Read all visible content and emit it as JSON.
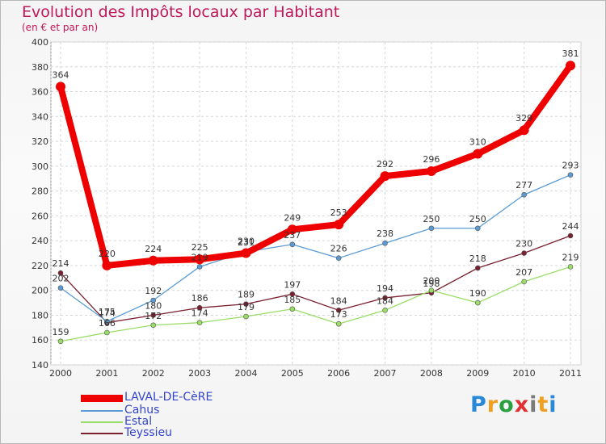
{
  "colors": {
    "title": "#c0185a",
    "axis_text": "#333333",
    "legend_text": "#3344cc"
  },
  "chart_data": {
    "type": "line",
    "title": "Evolution des Impôts locaux par Habitant",
    "subtitle": "(en € et par an)",
    "xlabel": "",
    "ylabel": "",
    "ylim": [
      140,
      400
    ],
    "ytick_step": 20,
    "grid": true,
    "legend_position": "bottom-left",
    "x": [
      "2000",
      "2001",
      "2002",
      "2003",
      "2004",
      "2005",
      "2006",
      "2007",
      "2008",
      "2009",
      "2010",
      "2011"
    ],
    "series": [
      {
        "name": "LAVAL-DE-CèRE",
        "color": "#ee0000",
        "values": [
          364,
          220,
          224,
          225,
          230,
          249,
          253,
          292,
          296,
          310,
          329,
          381
        ],
        "labels": [
          "364",
          "220",
          "224",
          "225",
          "230",
          "249",
          "253",
          "292",
          "296",
          "310",
          "329",
          "381"
        ]
      },
      {
        "name": "Cahus",
        "color": "#5b9bd5",
        "values": [
          202,
          175,
          192,
          219,
          231,
          237,
          226,
          238,
          250,
          250,
          277,
          293
        ],
        "labels": [
          "202",
          "175",
          "192",
          "219",
          "231",
          "237",
          "226",
          "238",
          "250",
          "250",
          "277",
          "293"
        ]
      },
      {
        "name": "Estal",
        "color": "#99dd66",
        "values": [
          159,
          166,
          172,
          174,
          179,
          185,
          173,
          184,
          200,
          190,
          207,
          219
        ],
        "labels": [
          "159",
          "166",
          "172",
          "174",
          "179",
          "185",
          "173",
          "184",
          "200",
          "190",
          "207",
          "219"
        ]
      },
      {
        "name": "Teyssieu",
        "color": "#7a2030",
        "values": [
          214,
          174,
          180,
          186,
          189,
          197,
          184,
          194,
          198,
          218,
          230,
          244
        ],
        "labels": [
          "214",
          "174",
          "180",
          "186",
          "189",
          "197",
          "184",
          "194",
          "198",
          "218",
          "230",
          "244"
        ]
      }
    ]
  },
  "logo": {
    "letters": [
      "P",
      "r",
      "o",
      "x",
      "i",
      "t",
      "i"
    ],
    "colors": [
      "#2a88d8",
      "#f0a020",
      "#2aa040",
      "#e03030",
      "#7a7a7a",
      "#f0a020",
      "#2a88d8"
    ]
  }
}
